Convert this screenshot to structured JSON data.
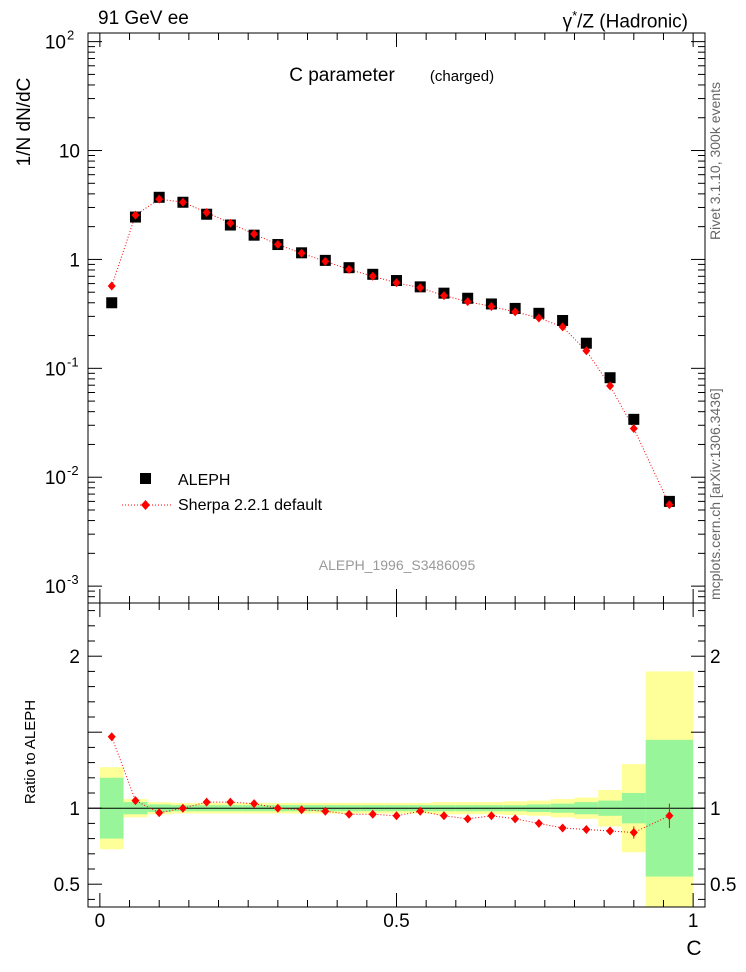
{
  "header": {
    "left_label": "91 GeV ee",
    "right_label_base": "γ",
    "right_label_sup": "*",
    "right_label_rest": "/Z (Hadronic)"
  },
  "side_labels": {
    "rivet": "Rivet 3.1.10,  300k events",
    "mcplots": "mcplots.cern.ch [arXiv:1306.3436]"
  },
  "chart_data": {
    "type": "scatter",
    "title": "C parameter",
    "subtitle": "(charged)",
    "watermark": "ALEPH_1996_S3486095",
    "xlabel": "C",
    "ylabel": "1/N dN/dC",
    "ratio_ylabel": "Ratio to ALEPH",
    "xlim": [
      -0.02,
      1.02
    ],
    "ylim": [
      0.0007,
      120
    ],
    "yscale": "log",
    "ratio_ylim": [
      0.35,
      2.35
    ],
    "x_ticks": [
      "0",
      "0.5",
      "1"
    ],
    "y_ticks": [
      "10^-3",
      "10^-2",
      "10^-1",
      "1",
      "10",
      "10^2"
    ],
    "ratio_ticks": [
      "0.5",
      "1",
      "2"
    ],
    "legend_position": "lower-left",
    "colors": {
      "data": "#000000",
      "mc": "#ff0000",
      "band_inner": "#99f599",
      "band_outer": "#ffff99"
    },
    "series": [
      {
        "name": "ALEPH",
        "x": [
          0.02,
          0.06,
          0.1,
          0.14,
          0.18,
          0.22,
          0.26,
          0.3,
          0.34,
          0.38,
          0.42,
          0.46,
          0.5,
          0.54,
          0.58,
          0.62,
          0.66,
          0.7,
          0.74,
          0.78,
          0.82,
          0.86,
          0.9,
          0.96
        ],
        "values": [
          0.4,
          2.45,
          3.72,
          3.35,
          2.6,
          2.07,
          1.67,
          1.37,
          1.15,
          0.98,
          0.84,
          0.73,
          0.64,
          0.56,
          0.49,
          0.44,
          0.39,
          0.355,
          0.32,
          0.275,
          0.17,
          0.082,
          0.034,
          0.006
        ]
      },
      {
        "name": "Sherpa 2.2.1 default",
        "x": [
          0.02,
          0.06,
          0.1,
          0.14,
          0.18,
          0.22,
          0.26,
          0.3,
          0.34,
          0.38,
          0.42,
          0.46,
          0.5,
          0.54,
          0.58,
          0.62,
          0.66,
          0.7,
          0.74,
          0.78,
          0.82,
          0.86,
          0.9,
          0.96
        ],
        "values": [
          0.57,
          2.55,
          3.58,
          3.35,
          2.7,
          2.15,
          1.71,
          1.37,
          1.14,
          0.96,
          0.81,
          0.7,
          0.61,
          0.55,
          0.465,
          0.41,
          0.37,
          0.33,
          0.29,
          0.24,
          0.145,
          0.069,
          0.028,
          0.0056
        ],
        "ratio": [
          1.47,
          1.05,
          0.97,
          1.0,
          1.04,
          1.04,
          1.03,
          1.0,
          0.99,
          0.98,
          0.96,
          0.96,
          0.95,
          0.98,
          0.95,
          0.93,
          0.95,
          0.93,
          0.9,
          0.87,
          0.86,
          0.85,
          0.84,
          0.95
        ],
        "ratio_err": [
          0.02,
          0.01,
          0.01,
          0.01,
          0.01,
          0.01,
          0.01,
          0.01,
          0.01,
          0.01,
          0.01,
          0.01,
          0.01,
          0.01,
          0.01,
          0.01,
          0.01,
          0.01,
          0.01,
          0.01,
          0.01,
          0.02,
          0.04,
          0.08
        ]
      }
    ],
    "bands": {
      "edges": [
        0.0,
        0.04,
        0.08,
        0.12,
        0.16,
        0.2,
        0.24,
        0.28,
        0.32,
        0.36,
        0.4,
        0.44,
        0.48,
        0.52,
        0.56,
        0.6,
        0.64,
        0.68,
        0.72,
        0.76,
        0.8,
        0.84,
        0.88,
        0.92,
        1.0
      ],
      "inner": [
        0.2,
        0.04,
        0.025,
        0.02,
        0.02,
        0.02,
        0.02,
        0.02,
        0.02,
        0.02,
        0.02,
        0.02,
        0.02,
        0.02,
        0.02,
        0.02,
        0.02,
        0.02,
        0.025,
        0.03,
        0.04,
        0.05,
        0.1,
        0.45
      ],
      "outer": [
        0.27,
        0.06,
        0.04,
        0.035,
        0.035,
        0.035,
        0.035,
        0.035,
        0.035,
        0.035,
        0.035,
        0.035,
        0.035,
        0.035,
        0.04,
        0.04,
        0.04,
        0.045,
        0.05,
        0.06,
        0.07,
        0.12,
        0.29,
        0.9
      ]
    }
  }
}
